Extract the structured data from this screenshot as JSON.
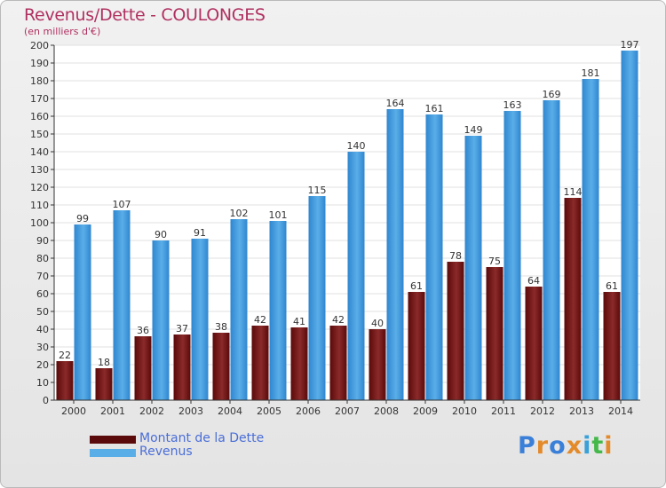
{
  "colors": {
    "title": "#b03060",
    "debt_top": "#8b2a2a",
    "debt_bottom": "#5a0a0a",
    "revenue_top": "#5aaee8",
    "revenue_bottom": "#2f86cf",
    "legend_text": "#4a6ed8",
    "brand": [
      "#3a7fd8",
      "#e38a2a",
      "#3a7fd8",
      "#e38a2a",
      "#3aa0d8",
      "#44b84a",
      "#e38a2a"
    ]
  },
  "brand": {
    "text": "Proxiti",
    "icon": "proxiti-logo"
  },
  "chart_data": {
    "type": "bar",
    "title": "Revenus/Dette - COULONGES",
    "subtitle": "(en milliers d'€)",
    "xlabel": "",
    "ylabel": "",
    "ylim": [
      0,
      200
    ],
    "ytick_step": 10,
    "grid": true,
    "legend_position": "bottom-left",
    "categories": [
      "2000",
      "2001",
      "2002",
      "2003",
      "2004",
      "2005",
      "2006",
      "2007",
      "2008",
      "2009",
      "2010",
      "2011",
      "2012",
      "2013",
      "2014"
    ],
    "series": [
      {
        "name": "Montant de la Dette",
        "values": [
          22,
          18,
          36,
          37,
          38,
          42,
          41,
          42,
          40,
          61,
          78,
          75,
          64,
          114,
          61
        ]
      },
      {
        "name": "Revenus",
        "values": [
          99,
          107,
          90,
          91,
          102,
          101,
          115,
          140,
          164,
          161,
          149,
          163,
          169,
          181,
          197
        ]
      }
    ]
  }
}
